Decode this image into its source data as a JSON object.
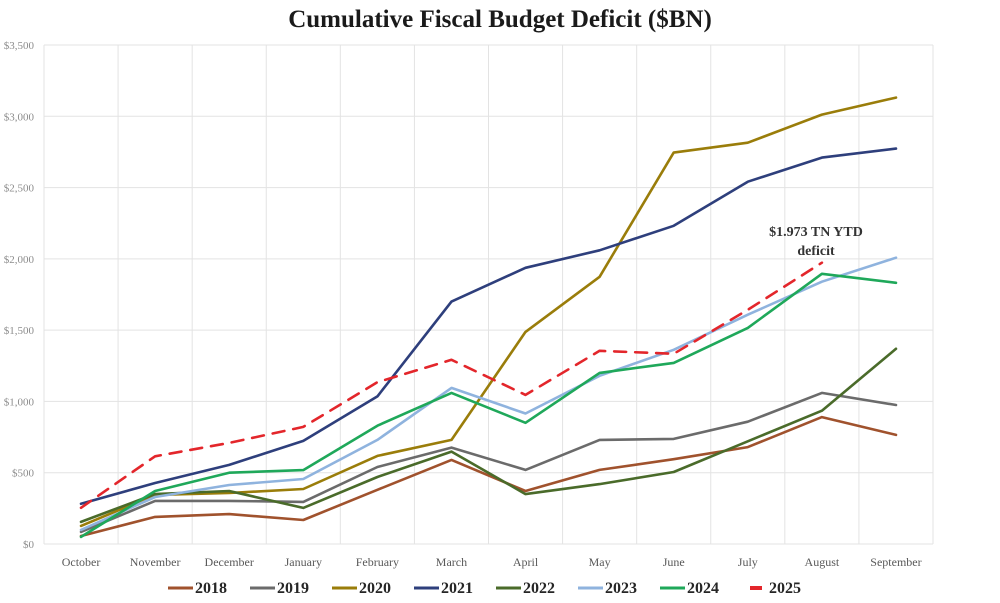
{
  "chart_data": {
    "type": "line",
    "title": "Cumulative Fiscal Budget Deficit ($BN)",
    "xlabel": "",
    "ylabel": "",
    "ylim": [
      0,
      3500
    ],
    "y_ticks": [
      0,
      500,
      1000,
      1500,
      2000,
      2500,
      3000,
      3500
    ],
    "y_tick_labels": [
      "$0",
      "$500",
      "$1,000",
      "$1,500",
      "$2,000",
      "$2,500",
      "$3,000",
      "$3,500"
    ],
    "categories": [
      "October",
      "November",
      "December",
      "January",
      "February",
      "March",
      "April",
      "May",
      "June",
      "July",
      "August",
      "September"
    ],
    "grid": true,
    "legend_position": "bottom",
    "series": [
      {
        "name": "2018",
        "color": "#a0522d",
        "dashed": false,
        "values": [
          56,
          190,
          210,
          168,
          380,
          590,
          372,
          520,
          595,
          680,
          890,
          765
        ]
      },
      {
        "name": "2019",
        "color": "#6b6b6b",
        "dashed": false,
        "values": [
          85,
          302,
          302,
          295,
          540,
          676,
          520,
          730,
          737,
          858,
          1060,
          975
        ]
      },
      {
        "name": "2020",
        "color": "#9a7d0a",
        "dashed": false,
        "values": [
          127,
          344,
          358,
          386,
          618,
          730,
          1488,
          1874,
          2745,
          2815,
          3012,
          3131
        ]
      },
      {
        "name": "2021",
        "color": "#2e3f7c",
        "dashed": false,
        "values": [
          282,
          428,
          555,
          723,
          1035,
          1700,
          1937,
          2060,
          2232,
          2541,
          2710,
          2773
        ]
      },
      {
        "name": "2022",
        "color": "#4a6b2a",
        "dashed": false,
        "values": [
          155,
          351,
          372,
          253,
          470,
          648,
          350,
          420,
          505,
          720,
          935,
          1369
        ]
      },
      {
        "name": "2023",
        "color": "#8fb3de",
        "dashed": false,
        "values": [
          99,
          330,
          414,
          456,
          730,
          1095,
          915,
          1180,
          1362,
          1608,
          1840,
          2008
        ]
      },
      {
        "name": "2024",
        "color": "#1fa85a",
        "dashed": false,
        "values": [
          50,
          372,
          500,
          518,
          830,
          1060,
          850,
          1200,
          1270,
          1516,
          1895,
          1832
        ]
      },
      {
        "name": "2025",
        "color": "#e3262b",
        "dashed": true,
        "values": [
          254,
          615,
          709,
          821,
          1135,
          1292,
          1046,
          1355,
          1334,
          1643,
          1973,
          null
        ]
      }
    ],
    "annotations": [
      {
        "text_line1": "$1.973 TN YTD",
        "text_line2": "deficit",
        "series": "2025",
        "category": "August",
        "value": 1973
      }
    ]
  }
}
